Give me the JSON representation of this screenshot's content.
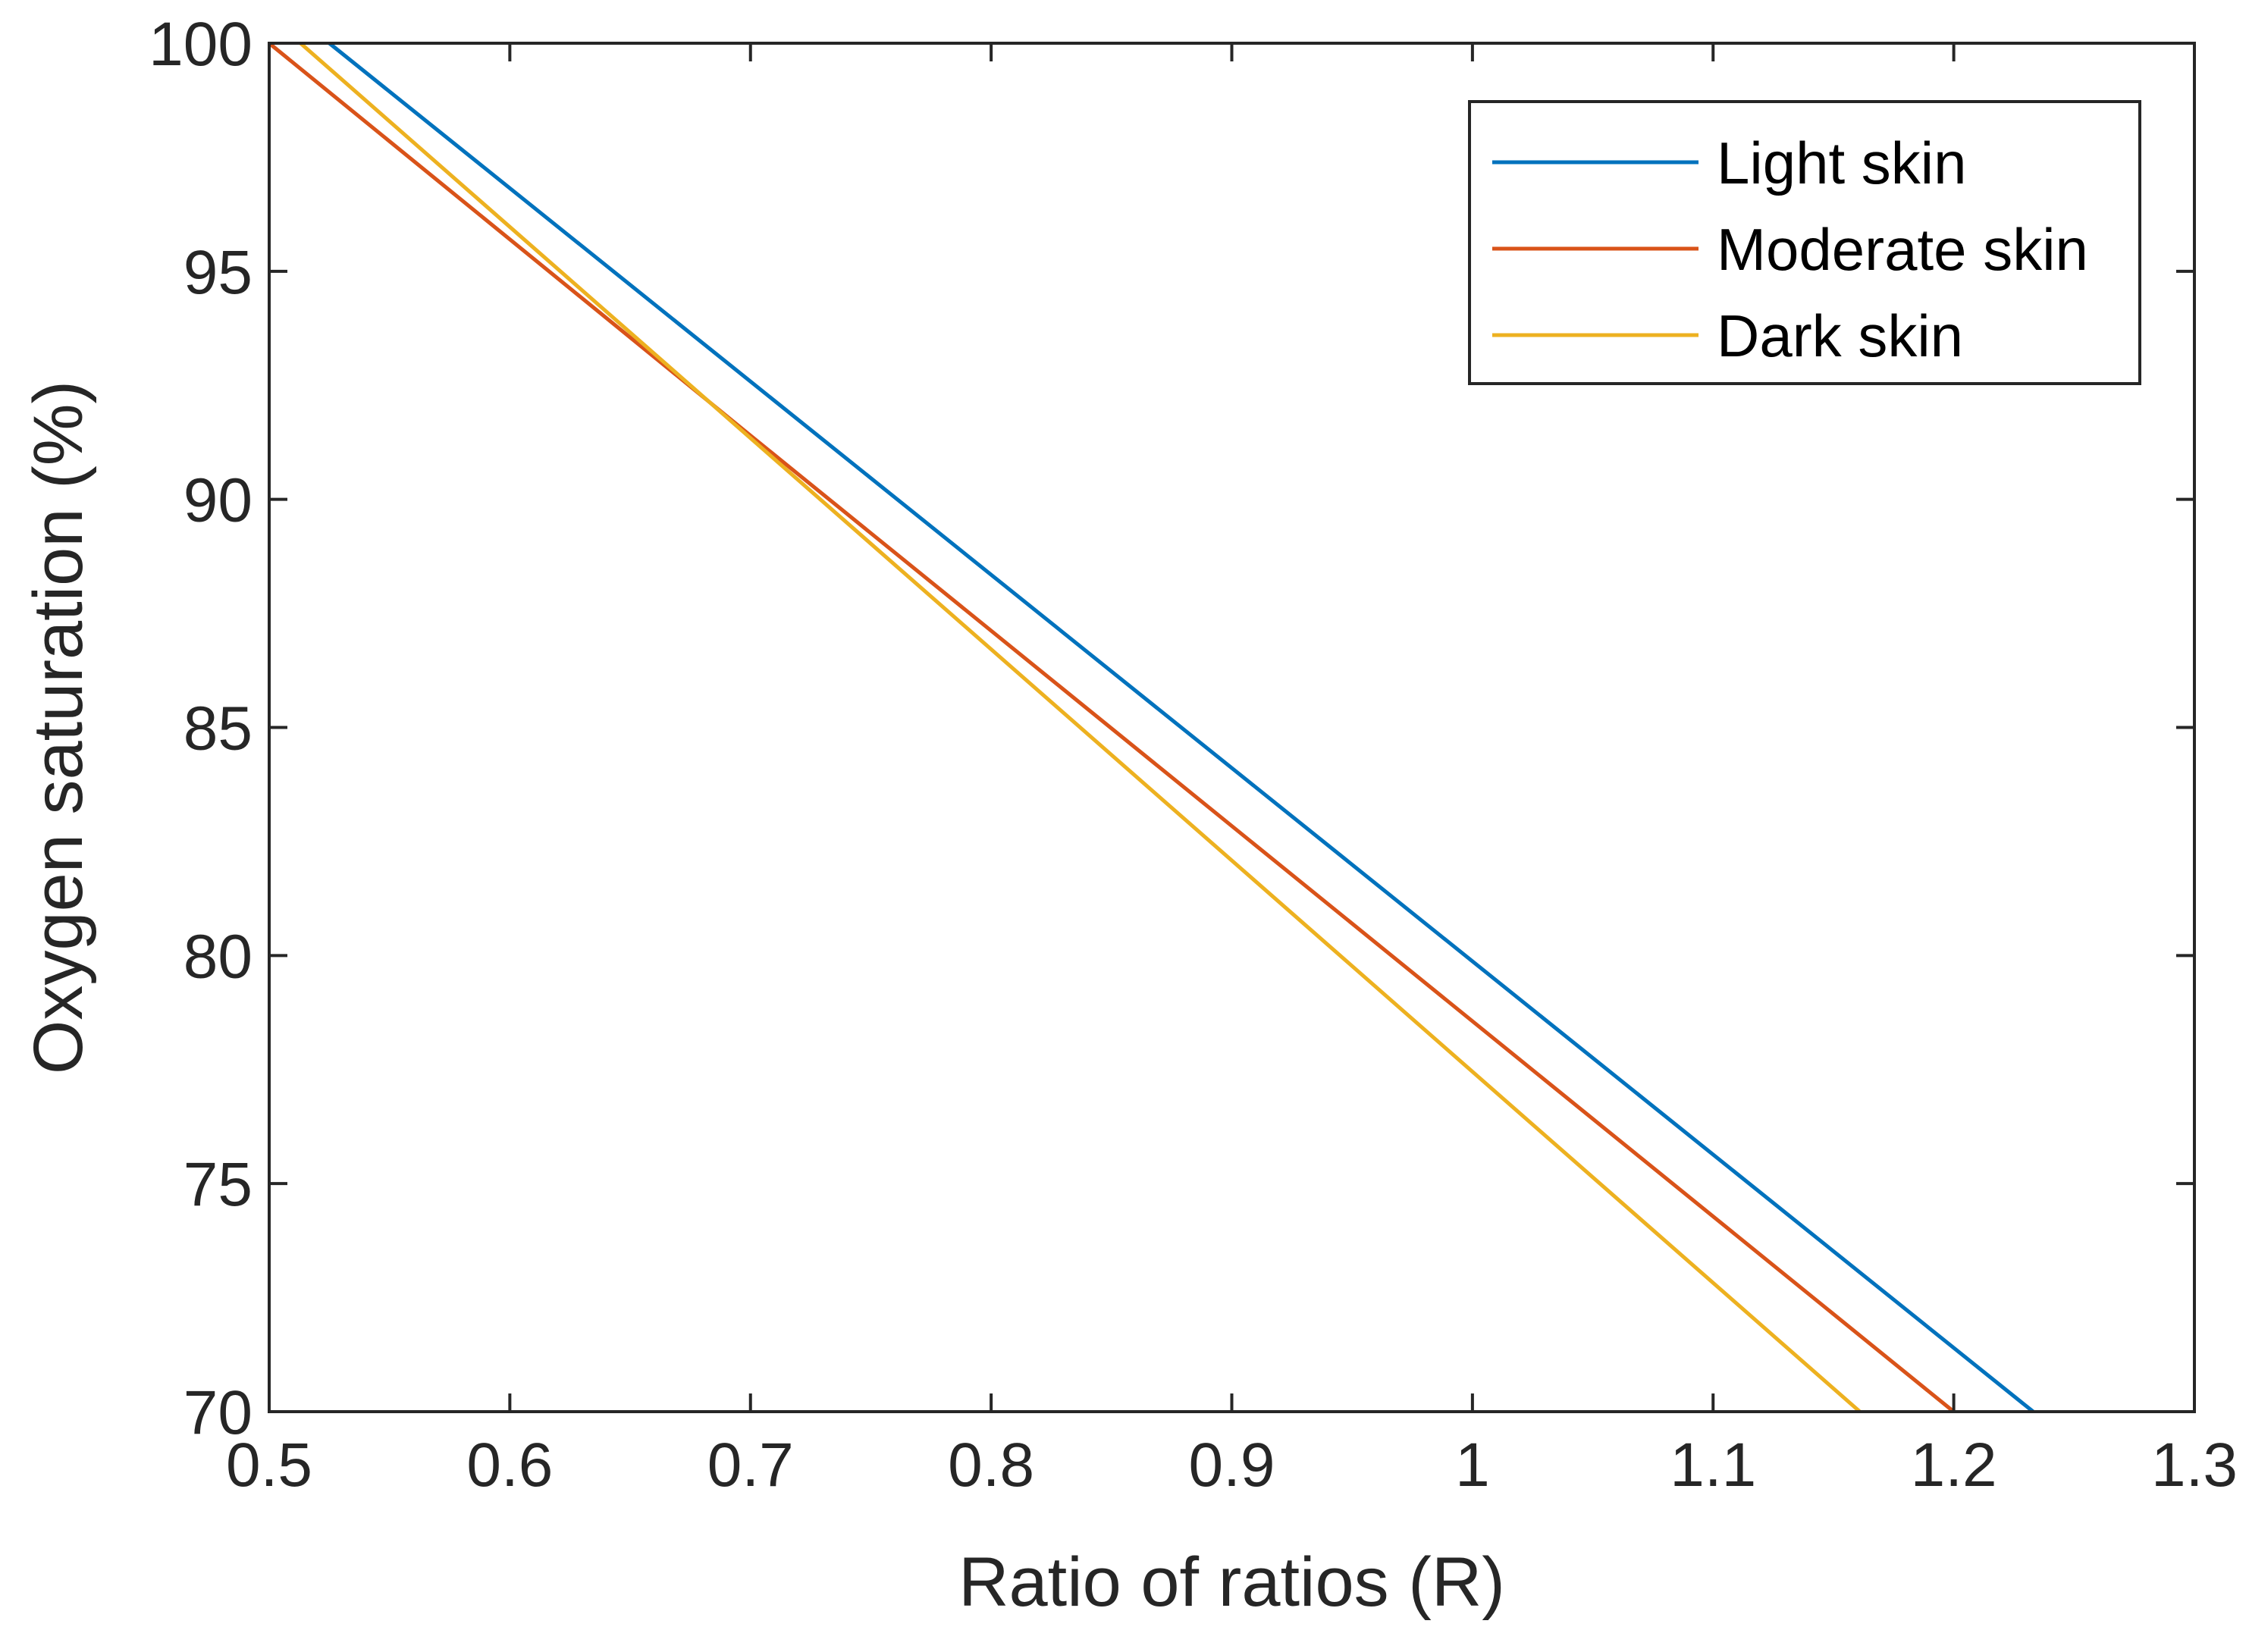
{
  "chart_data": {
    "type": "line",
    "title": "",
    "xlabel": "Ratio of ratios (R)",
    "ylabel": "Oxygen saturation (%)",
    "xlim": [
      0.5,
      1.3
    ],
    "ylim": [
      70,
      100
    ],
    "xticks": [
      0.5,
      0.6,
      0.7,
      0.8,
      0.9,
      1.0,
      1.1,
      1.2,
      1.3
    ],
    "xtick_labels": [
      "0.5",
      "0.6",
      "0.7",
      "0.8",
      "0.9",
      "1",
      "1.1",
      "1.2",
      "1.3"
    ],
    "yticks": [
      70,
      75,
      80,
      85,
      90,
      95,
      100
    ],
    "ytick_labels": [
      "70",
      "75",
      "80",
      "85",
      "90",
      "95",
      "100"
    ],
    "grid": false,
    "legend_position": "top-right",
    "series": [
      {
        "name": "Light skin",
        "color": "#0072BD",
        "x": [
          0.525,
          1.233
        ],
        "y": [
          100,
          70
        ]
      },
      {
        "name": "Moderate skin",
        "color": "#D95319",
        "x": [
          0.5,
          0.7,
          1.2
        ],
        "y": [
          100,
          91.4,
          70
        ]
      },
      {
        "name": "Dark skin",
        "color": "#EDB120",
        "x": [
          0.513,
          1.161
        ],
        "y": [
          100,
          70
        ]
      }
    ]
  }
}
